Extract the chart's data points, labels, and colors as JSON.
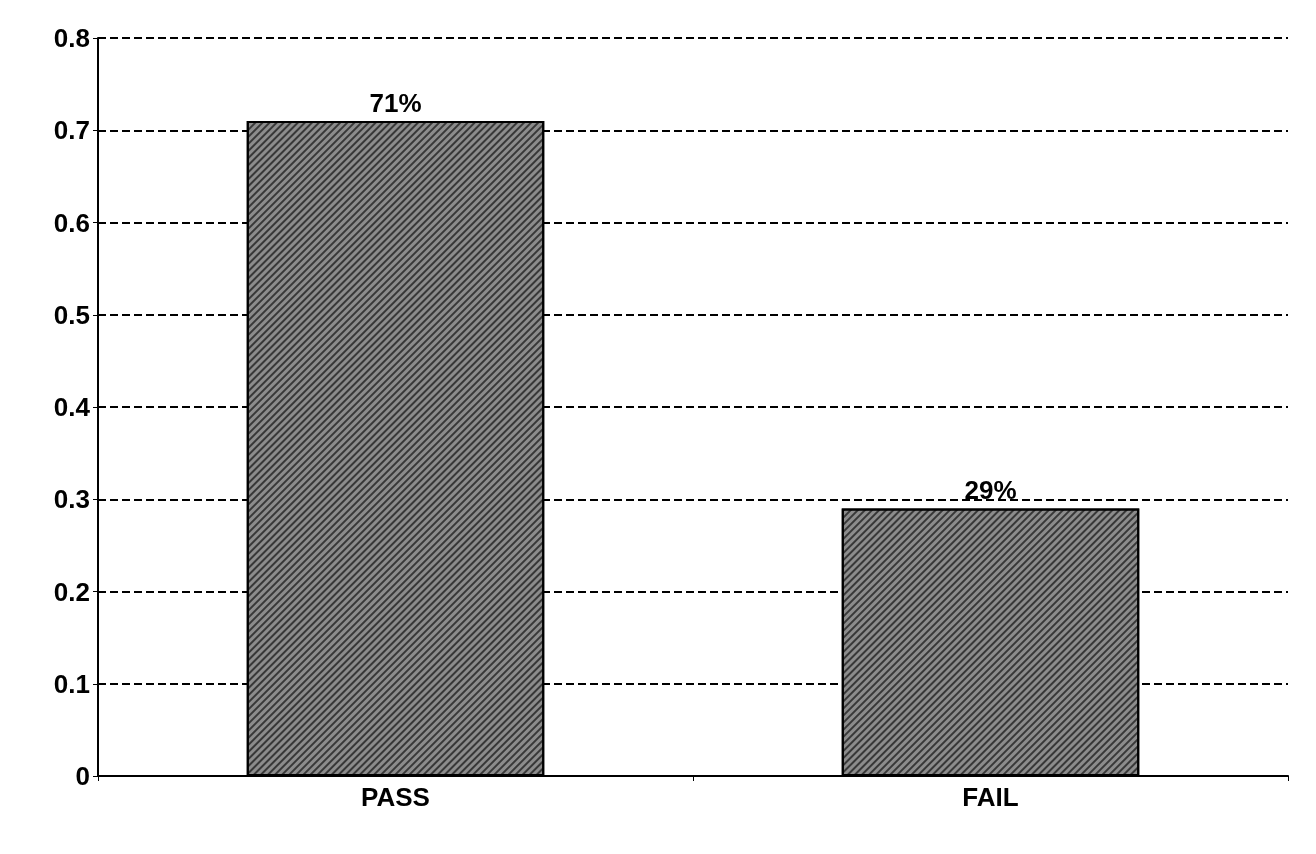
{
  "chart_data": {
    "type": "bar",
    "categories": [
      "PASS",
      "FAIL"
    ],
    "values": [
      0.71,
      0.29
    ],
    "value_labels": [
      "71%",
      "29%"
    ],
    "color": "#8c8c8c",
    "ylim": [
      0,
      0.8
    ],
    "yticks": [
      0,
      0.1,
      0.2,
      0.3,
      0.4,
      0.5,
      0.6,
      0.7,
      0.8
    ],
    "grid": "y"
  }
}
